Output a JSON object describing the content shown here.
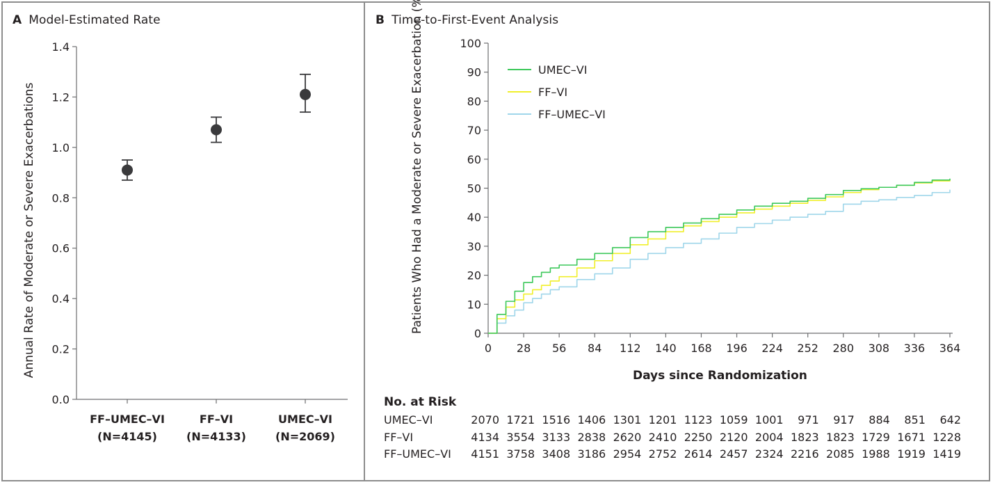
{
  "panel_a": {
    "letter": "A",
    "title": "Model-Estimated Rate"
  },
  "panel_b": {
    "letter": "B",
    "title": "Time-to-First-Event Analysis"
  },
  "chart_data": [
    {
      "type": "scatter",
      "title": "Model-Estimated Rate",
      "ylabel": "Annual Rate of Moderate or Severe Exacerbations",
      "ylim": [
        0.0,
        1.4
      ],
      "yticks": [
        "0.0",
        "0.2",
        "0.4",
        "0.6",
        "0.8",
        "1.0",
        "1.2",
        "1.4"
      ],
      "grid": false,
      "categories": [
        {
          "name": "FF–UMEC–VI",
          "n": "(N=4145)"
        },
        {
          "name": "FF–VI",
          "n": "(N=4133)"
        },
        {
          "name": "UMEC–VI",
          "n": "(N=2069)"
        }
      ],
      "values": [
        0.91,
        1.07,
        1.21
      ],
      "ci_low": [
        0.87,
        1.02,
        1.14
      ],
      "ci_high": [
        0.95,
        1.12,
        1.29
      ],
      "marker_color": "#3a3a3c"
    },
    {
      "type": "line",
      "title": "Time-to-First-Event Analysis",
      "xlabel": "Days since Randomization",
      "ylabel": "Patients Who Had a Moderate or Severe Exacerbation (%)",
      "xlim": [
        0,
        364
      ],
      "ylim": [
        0,
        100
      ],
      "xticks": [
        0,
        28,
        56,
        84,
        112,
        140,
        168,
        196,
        224,
        252,
        280,
        308,
        336,
        364
      ],
      "yticks": [
        0,
        10,
        20,
        30,
        40,
        50,
        60,
        70,
        80,
        90,
        100
      ],
      "grid": false,
      "legend_position": "top-left",
      "series": [
        {
          "name": "UMEC–VI",
          "color": "#3cc85a",
          "x": [
            0,
            7,
            14,
            21,
            28,
            35,
            42,
            49,
            56,
            70,
            84,
            98,
            112,
            126,
            140,
            154,
            168,
            182,
            196,
            210,
            224,
            238,
            252,
            266,
            280,
            294,
            308,
            322,
            336,
            350,
            364
          ],
          "y": [
            0,
            6.5,
            11,
            14.5,
            17.5,
            19.5,
            21,
            22.5,
            23.5,
            25.5,
            27.5,
            29.5,
            33,
            35,
            36.5,
            38,
            39.5,
            41,
            42.5,
            43.8,
            44.8,
            45.5,
            46.5,
            47.8,
            49.2,
            49.8,
            50.3,
            51,
            52,
            52.8,
            53.3
          ]
        },
        {
          "name": "FF–VI",
          "color": "#f0ef2a",
          "x": [
            0,
            7,
            14,
            21,
            28,
            35,
            42,
            49,
            56,
            70,
            84,
            98,
            112,
            126,
            140,
            154,
            168,
            182,
            196,
            210,
            224,
            238,
            252,
            266,
            280,
            294,
            308,
            322,
            336,
            350,
            364
          ],
          "y": [
            0,
            5,
            9,
            11.5,
            13.5,
            15,
            16.5,
            18,
            19.5,
            22.5,
            25,
            27.5,
            30.5,
            32.5,
            35,
            37,
            38.5,
            40,
            41.5,
            42.8,
            43.8,
            44.8,
            45.8,
            47,
            48.5,
            49.5,
            50.3,
            51,
            51.8,
            52.5,
            53
          ]
        },
        {
          "name": "FF–UMEC–VI",
          "color": "#9fd6ea",
          "x": [
            0,
            7,
            14,
            21,
            28,
            35,
            42,
            49,
            56,
            70,
            84,
            98,
            112,
            126,
            140,
            154,
            168,
            182,
            196,
            210,
            224,
            238,
            252,
            266,
            280,
            294,
            308,
            322,
            336,
            350,
            364
          ],
          "y": [
            0,
            3.5,
            6,
            8,
            10.5,
            12,
            13.5,
            15,
            16,
            18.5,
            20.5,
            22.5,
            25.5,
            27.5,
            29.5,
            31,
            32.5,
            34.5,
            36.5,
            37.8,
            39,
            40,
            41,
            42,
            44.5,
            45.5,
            46,
            46.8,
            47.5,
            48.5,
            49.5
          ]
        }
      ]
    }
  ],
  "at_risk": {
    "title": "No. at Risk",
    "rows": [
      {
        "label": "UMEC–VI",
        "values": [
          "2070",
          "1721",
          "1516",
          "1406",
          "1301",
          "1201",
          "1123",
          "1059",
          "1001",
          "971",
          "917",
          "884",
          "851",
          "642"
        ]
      },
      {
        "label": "FF–VI",
        "values": [
          "4134",
          "3554",
          "3133",
          "2838",
          "2620",
          "2410",
          "2250",
          "2120",
          "2004",
          "1823",
          "1823",
          "1729",
          "1671",
          "1228"
        ]
      },
      {
        "label": "FF–UMEC–VI",
        "values": [
          "4151",
          "3758",
          "3408",
          "3186",
          "2954",
          "2752",
          "2614",
          "2457",
          "2324",
          "2216",
          "2085",
          "1988",
          "1919",
          "1419"
        ]
      }
    ]
  }
}
